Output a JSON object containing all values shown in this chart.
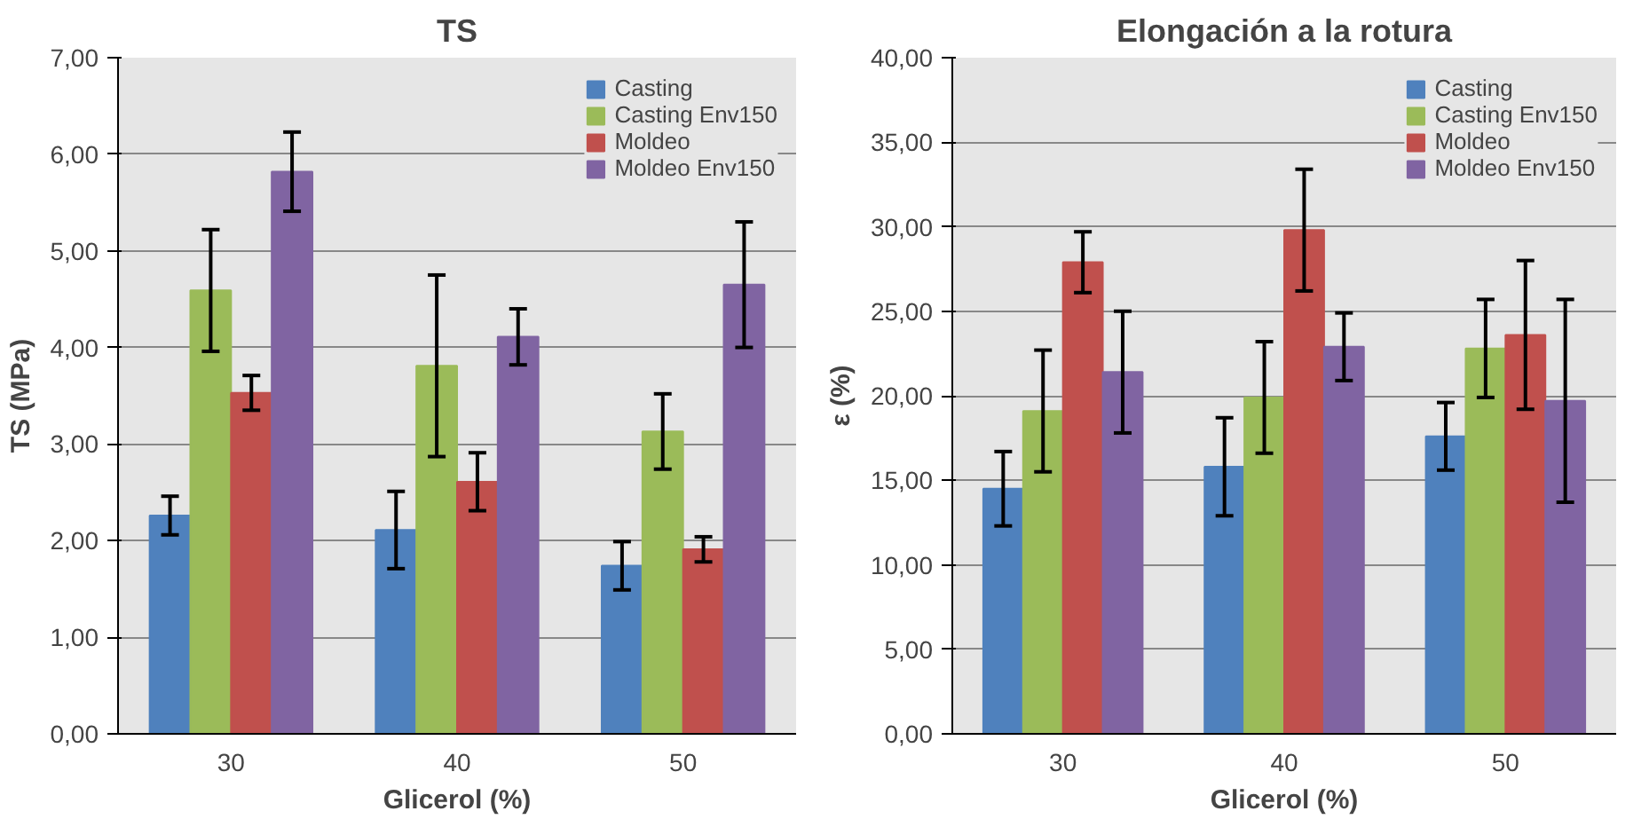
{
  "chart_data": [
    {
      "type": "bar",
      "title": "TS",
      "xlabel": "Glicerol (%)",
      "ylabel": "TS (MPa)",
      "categories": [
        "30",
        "40",
        "50"
      ],
      "series": [
        {
          "name": "Casting",
          "color": "#4f81bd",
          "values": [
            2.26,
            2.11,
            1.74
          ],
          "errors": [
            0.2,
            0.4,
            0.25
          ]
        },
        {
          "name": "Casting Env150",
          "color": "#9bbb59",
          "values": [
            4.59,
            3.81,
            3.13
          ],
          "errors": [
            0.63,
            0.94,
            0.39
          ]
        },
        {
          "name": "Moldeo",
          "color": "#c0504d",
          "values": [
            3.53,
            2.61,
            1.91
          ],
          "errors": [
            0.18,
            0.3,
            0.13
          ]
        },
        {
          "name": "Moldeo Env150",
          "color": "#8064a2",
          "values": [
            5.82,
            4.11,
            4.65
          ],
          "errors": [
            0.41,
            0.29,
            0.65
          ]
        }
      ],
      "ylim": [
        0,
        7
      ],
      "yticks": [
        {
          "value": 0,
          "label": "0,00"
        },
        {
          "value": 1,
          "label": "1,00"
        },
        {
          "value": 2,
          "label": "2,00"
        },
        {
          "value": 3,
          "label": "3,00"
        },
        {
          "value": 4,
          "label": "4,00"
        },
        {
          "value": 5,
          "label": "5,00"
        },
        {
          "value": 6,
          "label": "6,00"
        },
        {
          "value": 7,
          "label": "7,00"
        }
      ],
      "grid": "y",
      "legend": "top right"
    },
    {
      "type": "bar",
      "title": "Elongación a la rotura",
      "xlabel": "Glicerol (%)",
      "ylabel": "ε (%)",
      "categories": [
        "30",
        "40",
        "50"
      ],
      "series": [
        {
          "name": "Casting",
          "color": "#4f81bd",
          "values": [
            14.5,
            15.8,
            17.6
          ],
          "errors": [
            2.2,
            2.9,
            2.0
          ]
        },
        {
          "name": "Casting Env150",
          "color": "#9bbb59",
          "values": [
            19.1,
            19.9,
            22.8
          ],
          "errors": [
            3.6,
            3.3,
            2.9
          ]
        },
        {
          "name": "Moldeo",
          "color": "#c0504d",
          "values": [
            27.9,
            29.8,
            23.6
          ],
          "errors": [
            1.8,
            3.6,
            4.4
          ]
        },
        {
          "name": "Moldeo Env150",
          "color": "#8064a2",
          "values": [
            21.4,
            22.9,
            19.7
          ],
          "errors": [
            3.6,
            2.0,
            6.0
          ]
        }
      ],
      "ylim": [
        0,
        40
      ],
      "yticks": [
        {
          "value": 0,
          "label": "0,00"
        },
        {
          "value": 5,
          "label": "5,00"
        },
        {
          "value": 10,
          "label": "10,00"
        },
        {
          "value": 15,
          "label": "15,00"
        },
        {
          "value": 20,
          "label": "20,00"
        },
        {
          "value": 25,
          "label": "25,00"
        },
        {
          "value": 30,
          "label": "30,00"
        },
        {
          "value": 35,
          "label": "35,00"
        },
        {
          "value": 40,
          "label": "40,00"
        }
      ],
      "grid": "y",
      "legend": "top right"
    }
  ]
}
